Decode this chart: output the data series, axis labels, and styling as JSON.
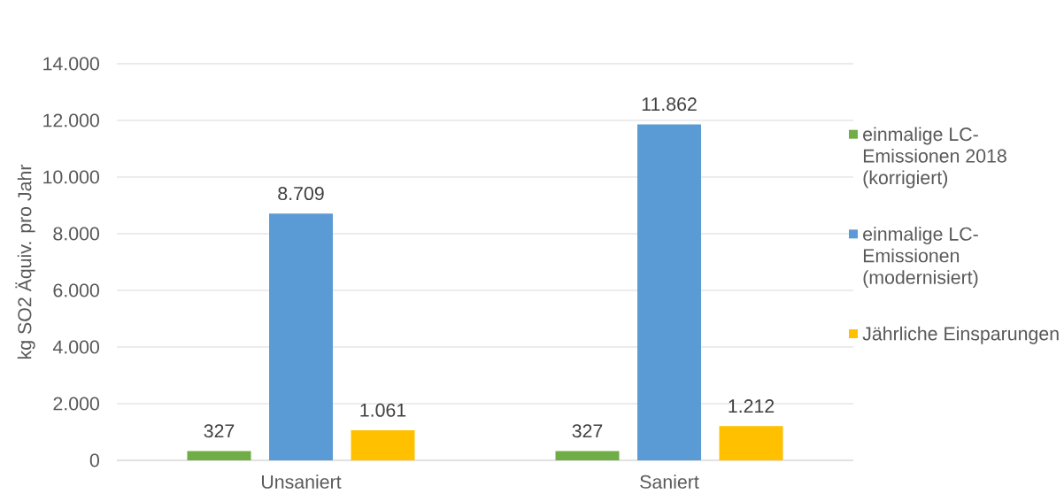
{
  "chart_data": {
    "type": "bar",
    "ylabel": "kg SO2 Äquiv. pro Jahr",
    "categories": [
      "Unsaniert",
      "Saniert"
    ],
    "series": [
      {
        "name": "einmalige LC-Emissionen 2018 (korrigiert)",
        "color": "#70ad47",
        "values": [
          327,
          327
        ],
        "value_labels": [
          "327",
          "327"
        ]
      },
      {
        "name": "einmalige LC-Emissionen (modernisiert)",
        "color": "#5b9bd5",
        "values": [
          8709,
          11862
        ],
        "value_labels": [
          "8.709",
          "11.862"
        ]
      },
      {
        "name": "Jährliche Einsparungen",
        "color": "#ffc000",
        "values": [
          1061,
          1212
        ],
        "value_labels": [
          "1.061",
          "1.212"
        ]
      }
    ],
    "ylim": [
      0,
      14000
    ],
    "yticks": [
      0,
      {
        "value": 2000,
        "label": "2.000"
      },
      {
        "value": 4000,
        "label": "4.000"
      },
      {
        "value": 6000,
        "label": "6.000"
      },
      {
        "value": 8000,
        "label": "8.000"
      },
      {
        "value": 10000,
        "label": "10.000"
      },
      {
        "value": 12000,
        "label": "12.000"
      },
      {
        "value": 14000,
        "label": "14.000"
      }
    ],
    "grid": "y",
    "legend": "right"
  }
}
